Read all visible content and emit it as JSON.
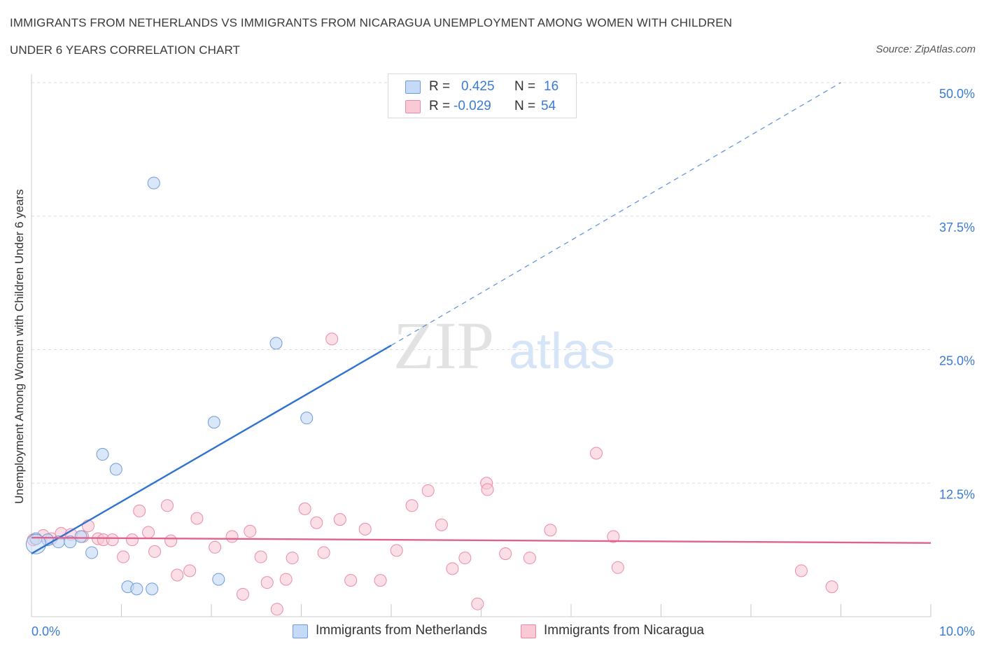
{
  "title_line1": "IMMIGRANTS FROM NETHERLANDS VS IMMIGRANTS FROM NICARAGUA UNEMPLOYMENT AMONG WOMEN WITH CHILDREN",
  "title_line2": "UNDER 6 YEARS CORRELATION CHART",
  "source": "Source: ZipAtlas.com",
  "watermark_zip": "ZIP",
  "watermark_atlas": "atlas",
  "legend": {
    "rows": [
      {
        "r_label": "R =",
        "r_value": "0.425",
        "n_label": "N =",
        "n_value": "16"
      },
      {
        "r_label": "R =",
        "r_value": "-0.029",
        "n_label": "N =",
        "n_value": "54"
      }
    ]
  },
  "bottom_legend": [
    "Immigrants from Netherlands",
    "Immigrants from Nicaragua"
  ],
  "colors": {
    "netherlands_fill": "#c5daf6",
    "netherlands_stroke": "#6f9bd6",
    "netherlands_line": "#2f72d0",
    "nicaragua_fill": "#f9c9d6",
    "nicaragua_stroke": "#ea8aa7",
    "nicaragua_line": "#e0628c",
    "grid": "#dcdcdc",
    "tick_label": "#3a7bd5"
  },
  "chart_data": {
    "type": "scatter",
    "title": "IMMIGRANTS FROM NETHERLANDS VS IMMIGRANTS FROM NICARAGUA UNEMPLOYMENT AMONG WOMEN WITH CHILDREN UNDER 6 YEARS CORRELATION CHART",
    "xlabel": "",
    "ylabel": "Unemployment Among Women with Children Under 6 years",
    "xlim": [
      0,
      10
    ],
    "ylim": [
      0,
      50
    ],
    "x_tick_labels": [
      "0.0%",
      "10.0%"
    ],
    "y_ticks": [
      12.5,
      25.0,
      37.5,
      50.0
    ],
    "y_tick_labels": [
      "12.5%",
      "25.0%",
      "37.5%",
      "50.0%"
    ],
    "grid": true,
    "legend_position": "top-center",
    "series": [
      {
        "name": "Immigrants from Netherlands",
        "R": 0.425,
        "N": 16,
        "points": [
          [
            0.05,
            7.3
          ],
          [
            0.18,
            7.2
          ],
          [
            0.3,
            7.0
          ],
          [
            0.43,
            7.0
          ],
          [
            0.55,
            7.5
          ],
          [
            0.67,
            6.0
          ],
          [
            0.79,
            15.2
          ],
          [
            0.94,
            13.8
          ],
          [
            1.07,
            2.8
          ],
          [
            1.17,
            2.6
          ],
          [
            1.34,
            2.6
          ],
          [
            1.36,
            40.6
          ],
          [
            2.03,
            18.2
          ],
          [
            2.08,
            3.5
          ],
          [
            2.72,
            25.6
          ],
          [
            3.06,
            18.6
          ]
        ],
        "trend": {
          "x0": 0,
          "y0": 5.9,
          "x1": 4.0,
          "y1": 25.4,
          "dash_x1": 9.0,
          "dash_y1": 50.0
        }
      },
      {
        "name": "Immigrants from Nicaragua",
        "R": -0.029,
        "N": 54,
        "points": [
          [
            0.02,
            7.2
          ],
          [
            0.13,
            7.6
          ],
          [
            0.22,
            7.3
          ],
          [
            0.33,
            7.8
          ],
          [
            0.44,
            7.7
          ],
          [
            0.57,
            7.5
          ],
          [
            0.63,
            8.5
          ],
          [
            0.74,
            7.3
          ],
          [
            0.8,
            7.2
          ],
          [
            0.9,
            7.2
          ],
          [
            1.02,
            5.6
          ],
          [
            1.12,
            7.2
          ],
          [
            1.2,
            9.9
          ],
          [
            1.3,
            7.9
          ],
          [
            1.37,
            6.1
          ],
          [
            1.51,
            10.4
          ],
          [
            1.55,
            7.1
          ],
          [
            1.62,
            3.9
          ],
          [
            1.76,
            4.3
          ],
          [
            1.84,
            9.2
          ],
          [
            2.04,
            6.5
          ],
          [
            2.23,
            7.5
          ],
          [
            2.35,
            2.1
          ],
          [
            2.43,
            8.0
          ],
          [
            2.55,
            5.6
          ],
          [
            2.62,
            3.2
          ],
          [
            2.73,
            0.7
          ],
          [
            2.83,
            3.5
          ],
          [
            2.9,
            5.5
          ],
          [
            3.04,
            10.1
          ],
          [
            3.17,
            8.8
          ],
          [
            3.25,
            6.0
          ],
          [
            3.34,
            26.0
          ],
          [
            3.43,
            9.1
          ],
          [
            3.55,
            3.4
          ],
          [
            3.71,
            8.2
          ],
          [
            3.88,
            3.4
          ],
          [
            4.06,
            6.2
          ],
          [
            4.23,
            10.4
          ],
          [
            4.41,
            11.8
          ],
          [
            4.56,
            8.6
          ],
          [
            4.68,
            4.5
          ],
          [
            4.82,
            5.5
          ],
          [
            4.96,
            1.2
          ],
          [
            5.06,
            12.5
          ],
          [
            5.07,
            11.9
          ],
          [
            5.27,
            5.9
          ],
          [
            5.54,
            5.5
          ],
          [
            5.77,
            8.1
          ],
          [
            6.28,
            15.3
          ],
          [
            6.47,
            7.5
          ],
          [
            6.52,
            4.6
          ],
          [
            8.56,
            4.3
          ],
          [
            8.9,
            2.8
          ]
        ],
        "trend": {
          "x0": 0,
          "y0": 7.4,
          "x1": 10,
          "y1": 6.9
        }
      }
    ]
  }
}
